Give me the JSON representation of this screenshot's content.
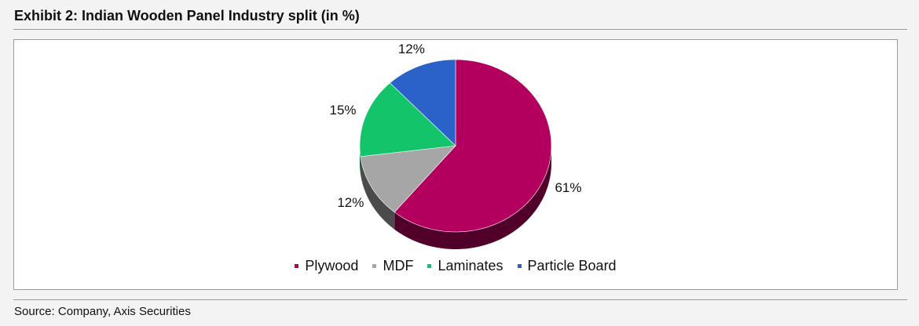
{
  "chart_data": {
    "type": "pie",
    "title": "Exhibit 2: Indian Wooden Panel Industry split (in %)",
    "categories": [
      "Plywood",
      "MDF",
      "Laminates",
      "Particle Board"
    ],
    "values": [
      61,
      12,
      15,
      12
    ],
    "value_labels": [
      "61%",
      "12%",
      "15%",
      "12%"
    ],
    "colors": [
      "#b3005e",
      "#a6a6a6",
      "#14c46a",
      "#2a62c9"
    ],
    "source": "Source: Company, Axis Securities"
  }
}
